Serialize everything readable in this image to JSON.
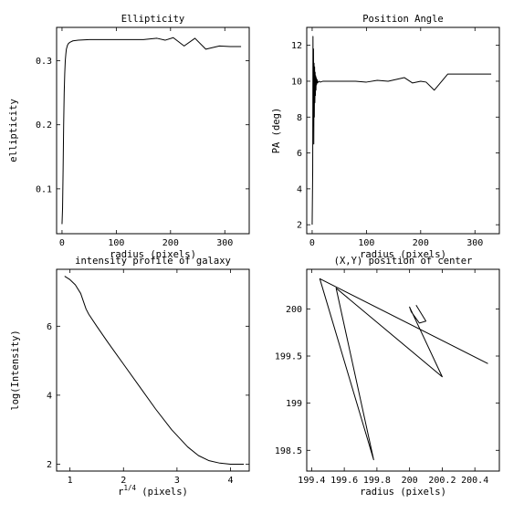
{
  "chart_data": [
    {
      "type": "line",
      "title": "Ellipticity",
      "xlabel": "radius (pixels)",
      "ylabel": "ellipticity",
      "xlim": [
        -10,
        345
      ],
      "ylim": [
        0.03,
        0.352
      ],
      "xticks": [
        0,
        100,
        200,
        300
      ],
      "yticks": [
        0.1,
        0.2,
        0.3
      ],
      "series": [
        {
          "x": [
            0,
            1,
            2,
            3,
            4,
            5,
            6,
            7,
            8,
            10,
            12,
            15,
            20,
            30,
            50,
            100,
            150,
            175,
            190,
            205,
            225,
            245,
            265,
            290,
            310,
            330
          ],
          "y": [
            0.045,
            0.07,
            0.13,
            0.2,
            0.25,
            0.28,
            0.3,
            0.31,
            0.318,
            0.324,
            0.327,
            0.329,
            0.331,
            0.332,
            0.333,
            0.333,
            0.333,
            0.335,
            0.332,
            0.336,
            0.323,
            0.335,
            0.318,
            0.323,
            0.322,
            0.322
          ]
        }
      ]
    },
    {
      "type": "line",
      "title": "Position Angle",
      "xlabel": "radius (pixels)",
      "ylabel": "PA (deg)",
      "xlim": [
        -10,
        345
      ],
      "ylim": [
        1.5,
        13.0
      ],
      "xticks": [
        0,
        100,
        200,
        300
      ],
      "yticks": [
        2,
        4,
        6,
        8,
        10,
        12
      ],
      "series": [
        {
          "x": [
            0,
            1,
            1.5,
            2,
            2.5,
            3,
            3.5,
            4,
            4.5,
            5,
            5.5,
            6,
            6.5,
            7,
            7.5,
            8,
            9,
            10,
            12,
            15,
            20,
            30,
            50,
            80,
            100,
            120,
            140,
            155,
            170,
            185,
            200,
            210,
            225,
            250,
            280,
            310,
            330
          ],
          "y": [
            2.0,
            5.0,
            12.5,
            7.5,
            11.8,
            6.5,
            11.0,
            8.0,
            10.8,
            8.8,
            10.5,
            9.2,
            10.3,
            9.5,
            10.2,
            9.8,
            10.1,
            9.9,
            10.0,
            9.95,
            10.0,
            10.0,
            10.0,
            10.0,
            9.95,
            10.05,
            10.0,
            10.1,
            10.2,
            9.9,
            10.0,
            9.95,
            9.5,
            10.4,
            10.4,
            10.4,
            10.4
          ]
        }
      ]
    },
    {
      "type": "line",
      "title": "intensity profile of galaxy",
      "xlabel": "r^{1/4} (pixels)",
      "ylabel": "log(Intensity)",
      "xlim": [
        0.75,
        4.35
      ],
      "ylim": [
        1.8,
        7.65
      ],
      "xticks": [
        1,
        2,
        3,
        4
      ],
      "yticks": [
        2,
        4,
        6
      ],
      "series": [
        {
          "x": [
            0.9,
            1.0,
            1.1,
            1.2,
            1.3,
            1.35,
            1.5,
            1.7,
            2.0,
            2.3,
            2.6,
            2.9,
            3.2,
            3.4,
            3.6,
            3.8,
            4.0,
            4.2,
            4.25
          ],
          "y": [
            7.45,
            7.35,
            7.2,
            6.95,
            6.5,
            6.35,
            6.0,
            5.55,
            4.9,
            4.25,
            3.6,
            3.0,
            2.5,
            2.25,
            2.1,
            2.03,
            2.0,
            2.0,
            2.0
          ]
        }
      ]
    },
    {
      "type": "line",
      "title": "(X,Y) position of center",
      "xlabel": "radius (pixels)",
      "ylabel": "",
      "xlim": [
        199.37,
        200.55
      ],
      "ylim": [
        198.28,
        200.42
      ],
      "xticks": [
        199.4,
        199.6,
        199.8,
        200,
        200.2,
        200.4
      ],
      "yticks": [
        198.5,
        199,
        199.5,
        200
      ],
      "series": [
        {
          "x": [
            200.48,
            199.45,
            199.78,
            199.55,
            200.2,
            200.0,
            200.01,
            200.06,
            200.1,
            200.04
          ],
          "y": [
            199.42,
            200.32,
            198.4,
            200.22,
            199.28,
            200.02,
            199.97,
            199.85,
            199.87,
            200.04
          ]
        }
      ]
    }
  ]
}
